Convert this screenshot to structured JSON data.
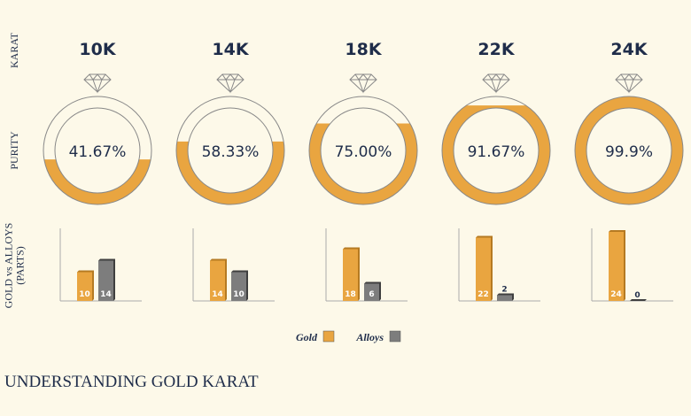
{
  "header": {
    "row_labels": [
      "KARAT",
      "PURITY",
      [
        "GOLD vs ALLOYS",
        "(PARTS)"
      ]
    ]
  },
  "columns": [
    {
      "karat": "10K",
      "purity": 41.67,
      "purity_label": "41.67%",
      "gold": 10,
      "alloys": 14
    },
    {
      "karat": "14K",
      "purity": 58.33,
      "purity_label": "58.33%",
      "gold": 14,
      "alloys": 10
    },
    {
      "karat": "18K",
      "purity": 75.0,
      "purity_label": "75.00%",
      "gold": 18,
      "alloys": 6
    },
    {
      "karat": "22K",
      "purity": 91.67,
      "purity_label": "91.67%",
      "gold": 22,
      "alloys": 2
    },
    {
      "karat": "24K",
      "purity": 99.9,
      "purity_label": "99.9%",
      "gold": 24,
      "alloys": 0
    }
  ],
  "legend": [
    {
      "name": "Gold",
      "color": "#e9a540"
    },
    {
      "name": "Alloys",
      "color": "#7d7d7d"
    }
  ],
  "footer": {
    "title": "UNDERSTANDING GOLD KARAT"
  }
}
